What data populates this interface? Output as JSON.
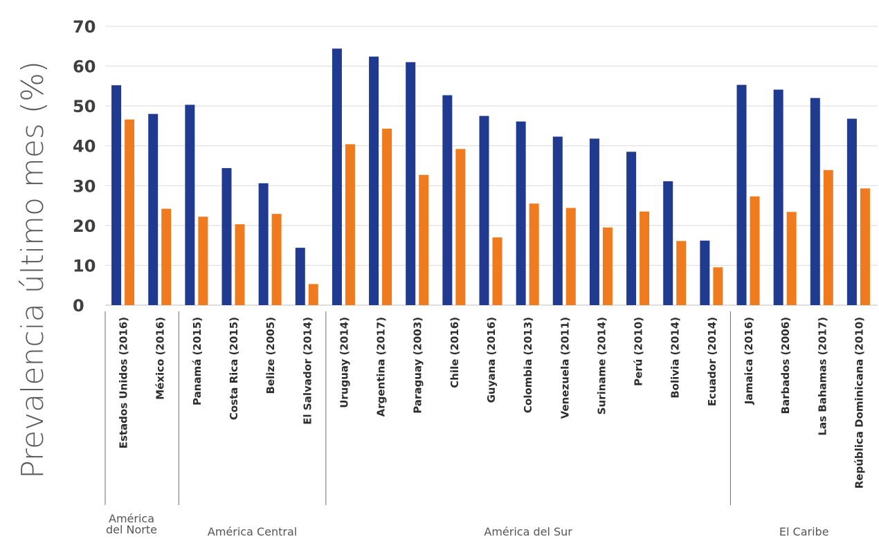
{
  "chart_data": {
    "type": "bar",
    "ylabel": "Prevalencia último mes (%)",
    "ylim": [
      0,
      70
    ],
    "yticks": [
      0,
      10,
      20,
      30,
      40,
      50,
      60,
      70
    ],
    "grid": true,
    "legend": "none",
    "colors": {
      "series1": "#1f3a8f",
      "series2": "#f07a1e",
      "grid": "#d9d9d9",
      "divider": "#6e6e6e"
    },
    "categories": [
      "Estados Unidos (2016)",
      "México (2016)",
      "Panamá (2015)",
      "Costa Rica (2015)",
      "Belize (2005)",
      "El Salvador (2014)",
      "Uruguay (2014)",
      "Argentina (2017)",
      "Paraguay (2003)",
      "Chile (2016)",
      "Guyana (2016)",
      "Colombia (2013)",
      "Venezuela (2011)",
      "Suriname (2014)",
      "Perú (2010)",
      "Bolivia (2014)",
      "Ecuador (2014)",
      "Jamaica (2016)",
      "Barbados (2006)",
      "Las Bahamas (2017)",
      "República Dominicana (2010)"
    ],
    "series": [
      {
        "values": [
          55.2,
          48,
          50.3,
          34.4,
          30.6,
          14.4,
          64.4,
          62.4,
          61,
          52.7,
          47.5,
          46.1,
          42.3,
          41.8,
          38.5,
          31.1,
          16.2,
          55.3,
          54.1,
          52,
          46.8
        ]
      },
      {
        "values": [
          46.6,
          24.2,
          22.2,
          20.3,
          22.9,
          5.3,
          40.4,
          44.3,
          32.7,
          39.2,
          17,
          25.5,
          24.4,
          19.5,
          23.5,
          16.1,
          9.5,
          27.3,
          23.4,
          33.9,
          29.3
        ]
      }
    ],
    "regions": [
      {
        "label_lines": [
          "América",
          "del Norte"
        ],
        "start": 0,
        "end": 1
      },
      {
        "label_lines": [
          "América Central"
        ],
        "start": 2,
        "end": 5
      },
      {
        "label_lines": [
          "América del Sur"
        ],
        "start": 6,
        "end": 16
      },
      {
        "label_lines": [
          "El Caribe"
        ],
        "start": 17,
        "end": 20
      }
    ]
  }
}
